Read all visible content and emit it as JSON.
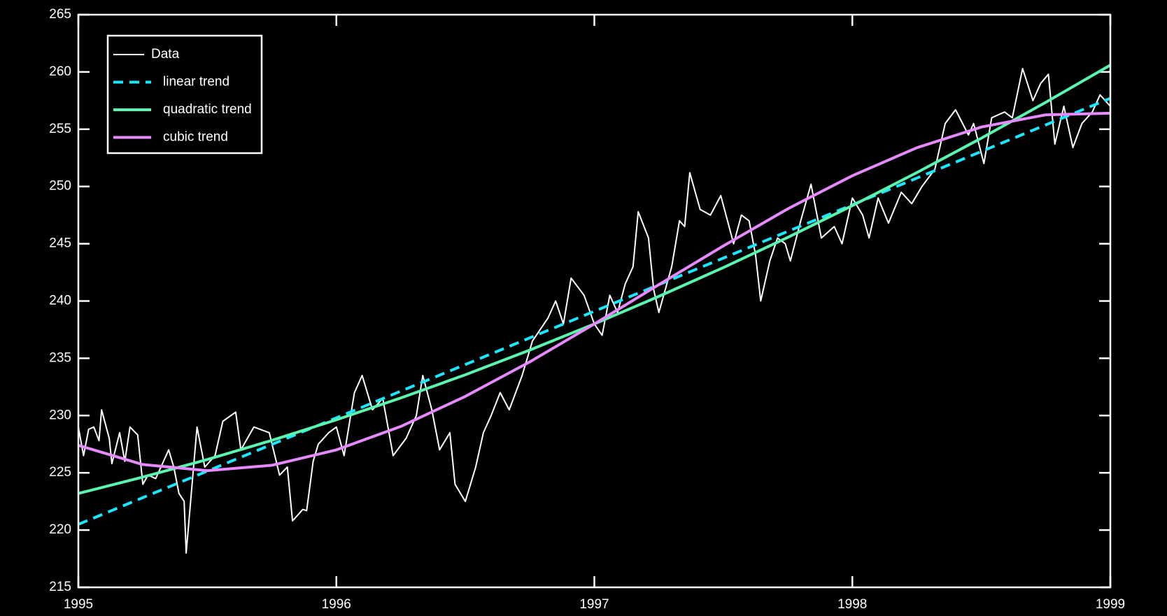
{
  "chart_data": {
    "type": "line",
    "xlim": [
      1995,
      1999
    ],
    "xticks": [
      1995,
      1996,
      1997,
      1998,
      1999
    ],
    "ylim": [
      215,
      265
    ],
    "yticks": [
      215,
      220,
      225,
      230,
      235,
      240,
      245,
      250,
      255,
      260,
      265
    ],
    "legend": "upper left",
    "series": [
      {
        "name": "Data",
        "color": "#ffffff",
        "style": "solid",
        "width": 2,
        "x": [
          1995.0,
          1995.02,
          1995.04,
          1995.06,
          1995.08,
          1995.09,
          1995.12,
          1995.13,
          1995.16,
          1995.18,
          1995.2,
          1995.23,
          1995.25,
          1995.27,
          1995.3,
          1995.32,
          1995.35,
          1995.37,
          1995.39,
          1995.41,
          1995.418,
          1995.46,
          1995.49,
          1995.53,
          1995.56,
          1995.61,
          1995.63,
          1995.68,
          1995.74,
          1995.78,
          1995.81,
          1995.83,
          1995.87,
          1995.885,
          1995.91,
          1995.93,
          1995.97,
          1996.0,
          1996.03,
          1996.07,
          1996.1,
          1996.14,
          1996.18,
          1996.22,
          1996.27,
          1996.31,
          1996.335,
          1996.37,
          1996.4,
          1996.44,
          1996.46,
          1996.5,
          1996.54,
          1996.57,
          1996.6,
          1996.635,
          1996.67,
          1996.72,
          1996.76,
          1996.82,
          1996.85,
          1996.88,
          1996.91,
          1996.96,
          1997.0,
          1997.03,
          1997.06,
          1997.09,
          1997.12,
          1997.15,
          1997.17,
          1997.21,
          1997.23,
          1997.25,
          1997.3,
          1997.33,
          1997.35,
          1997.37,
          1997.41,
          1997.45,
          1997.49,
          1997.54,
          1997.57,
          1997.6,
          1997.625,
          1997.645,
          1997.68,
          1997.71,
          1997.74,
          1997.76,
          1997.8,
          1997.84,
          1997.88,
          1997.93,
          1997.96,
          1998.0,
          1998.04,
          1998.065,
          1998.1,
          1998.14,
          1998.19,
          1998.23,
          1998.27,
          1998.32,
          1998.36,
          1998.4,
          1998.45,
          1998.47,
          1998.51,
          1998.54,
          1998.59,
          1998.62,
          1998.66,
          1998.7,
          1998.73,
          1998.76,
          1998.785,
          1998.82,
          1998.855,
          1998.89,
          1998.93,
          1998.96,
          1999.0
        ],
        "values": [
          229,
          226.5,
          228.8,
          229,
          227.8,
          230.5,
          228,
          225.8,
          228.5,
          226,
          229,
          228.3,
          224,
          224.8,
          224.5,
          225.5,
          227,
          225.5,
          223.2,
          222.5,
          218,
          229,
          225.5,
          226.5,
          229.5,
          230.3,
          227,
          229,
          228.5,
          224.8,
          225.5,
          220.8,
          221.8,
          221.7,
          226,
          227.5,
          228.5,
          229,
          226.5,
          232,
          233.5,
          230.5,
          231.5,
          226.5,
          228,
          230,
          233.5,
          230.5,
          227,
          228.5,
          224,
          222.5,
          225.5,
          228.5,
          230,
          232,
          230.5,
          233.5,
          236.5,
          238.5,
          240,
          238,
          242,
          240.5,
          238,
          237,
          240.5,
          239,
          241.5,
          243,
          247.8,
          245.5,
          241,
          239,
          243,
          247,
          246.5,
          251.2,
          248,
          247.5,
          249.2,
          245,
          247.5,
          247,
          244,
          240,
          243.5,
          245.5,
          245,
          243.5,
          247,
          250.2,
          245.5,
          246.5,
          245,
          249,
          247.5,
          245.5,
          249,
          246.8,
          249.5,
          248.5,
          250,
          251.5,
          255.5,
          256.7,
          254.5,
          255.5,
          252,
          256,
          256.5,
          256,
          260.3,
          257.5,
          259,
          259.8,
          253.7,
          257,
          253.4,
          255.5,
          256.5,
          258,
          257
        ]
      },
      {
        "name": "linear trend",
        "color": "#1ee6ff",
        "style": "dashed",
        "width": 4,
        "x": [
          1995,
          1995.25,
          1995.5,
          1995.75,
          1996,
          1996.25,
          1996.5,
          1996.75,
          1997,
          1997.25,
          1997.5,
          1997.75,
          1998,
          1998.25,
          1998.5,
          1998.75,
          1999
        ],
        "values": [
          220.5,
          222.83,
          225.15,
          227.48,
          229.8,
          232.13,
          234.45,
          236.78,
          239.1,
          241.43,
          243.75,
          246.08,
          248.4,
          250.73,
          253.05,
          255.38,
          257.7
        ]
      },
      {
        "name": "quadratic trend",
        "color": "#5cf5b0",
        "style": "solid",
        "width": 4,
        "x": [
          1995,
          1995.25,
          1995.5,
          1995.75,
          1996,
          1996.25,
          1996.5,
          1996.75,
          1997,
          1997.25,
          1997.5,
          1997.75,
          1998,
          1998.25,
          1998.5,
          1998.75,
          1999
        ],
        "values": [
          223.2,
          224.63,
          226.16,
          227.83,
          229.63,
          231.54,
          233.56,
          235.72,
          238,
          240.4,
          242.92,
          245.56,
          248.33,
          251.21,
          254.22,
          257.35,
          260.6
        ]
      },
      {
        "name": "cubic trend",
        "color": "#e68aff",
        "style": "solid",
        "width": 4,
        "x": [
          1995,
          1995.25,
          1995.5,
          1995.75,
          1996,
          1996.25,
          1996.5,
          1996.75,
          1997,
          1997.25,
          1997.5,
          1997.75,
          1998,
          1998.25,
          1998.5,
          1998.75,
          1999
        ],
        "values": [
          227.4,
          225.72,
          225.19,
          225.66,
          227.0,
          229.05,
          231.67,
          234.69,
          238,
          241.43,
          244.81,
          248.05,
          250.94,
          253.38,
          255.19,
          256.26,
          256.4
        ]
      }
    ]
  }
}
